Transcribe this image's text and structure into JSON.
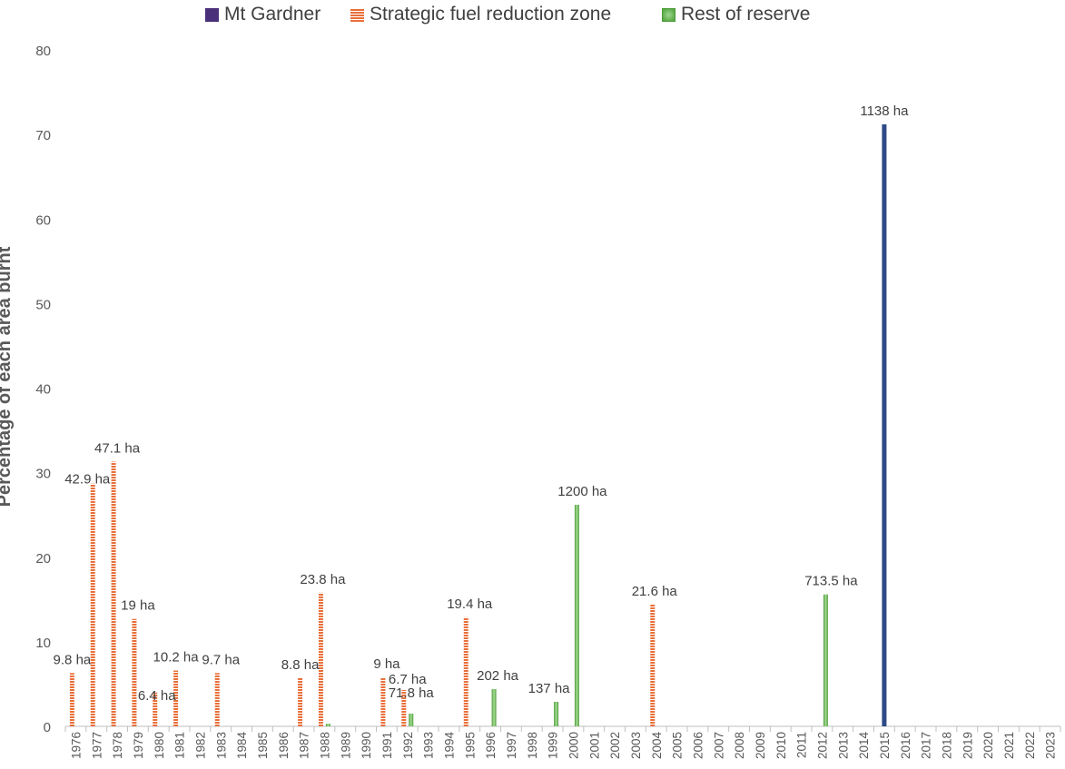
{
  "legend": [
    {
      "name": "Mt Gardner",
      "color": "#4a2f7a",
      "pattern": "solid"
    },
    {
      "name": "Strategic fuel reduction zone",
      "color": "#e8703a",
      "pattern": "stripes"
    },
    {
      "name": "Rest of reserve",
      "color": "#5aaa46",
      "pattern": "gradient"
    }
  ],
  "chart_data": {
    "type": "bar",
    "xlabel": "",
    "ylabel": "Percentage of each area burnt",
    "ylim": [
      0,
      80
    ],
    "yticks": [
      0,
      10,
      20,
      30,
      40,
      50,
      60,
      70,
      80
    ],
    "grid": false,
    "legend_position": "top",
    "categories": [
      "1976",
      "1977",
      "1978",
      "1979",
      "1980",
      "1981",
      "1982",
      "1983",
      "1984",
      "1985",
      "1986",
      "1987",
      "1988",
      "1989",
      "1990",
      "1991",
      "1992",
      "1993",
      "1994",
      "1995",
      "1996",
      "1997",
      "1998",
      "1999",
      "2000",
      "2001",
      "2002",
      "2003",
      "2004",
      "2005",
      "2006",
      "2007",
      "2008",
      "2009",
      "2010",
      "2011",
      "2012",
      "2013",
      "2014",
      "2015",
      "2016",
      "2017",
      "2018",
      "2019",
      "2020",
      "2021",
      "2022",
      "2023"
    ],
    "series": [
      {
        "name": "Strategic fuel reduction zone",
        "color": "#e8703a",
        "points": [
          {
            "x": "1976",
            "y": 6.3,
            "label": "9.8 ha"
          },
          {
            "x": "1977",
            "y": 28.7,
            "label": "42.9 ha"
          },
          {
            "x": "1978",
            "y": 31.3,
            "label": "47.1 ha"
          },
          {
            "x": "1979",
            "y": 12.7,
            "label": "19 ha"
          },
          {
            "x": "1980",
            "y": 4.0,
            "label": "6.4 ha"
          },
          {
            "x": "1981",
            "y": 6.6,
            "label": "10.2 ha"
          },
          {
            "x": "1983",
            "y": 6.3,
            "label": "9.7 ha"
          },
          {
            "x": "1987",
            "y": 5.7,
            "label": "8.8 ha"
          },
          {
            "x": "1988",
            "y": 15.8,
            "label": "23.8 ha"
          },
          {
            "x": "1991",
            "y": 5.8,
            "label": "9 ha"
          },
          {
            "x": "1992",
            "y": 4.3,
            "label": "6.7 ha"
          },
          {
            "x": "1995",
            "y": 12.9,
            "label": "19.4 ha"
          },
          {
            "x": "2004",
            "y": 14.4,
            "label": "21.6 ha"
          }
        ]
      },
      {
        "name": "Rest of reserve",
        "color": "#5aaa46",
        "points": [
          {
            "x": "1988",
            "y": 0.3,
            "label": ""
          },
          {
            "x": "1992",
            "y": 1.5,
            "label": "71.8 ha"
          },
          {
            "x": "1996",
            "y": 4.4,
            "label": "202 ha"
          },
          {
            "x": "1999",
            "y": 2.9,
            "label": "137 ha"
          },
          {
            "x": "2000",
            "y": 26.2,
            "label": "1200 ha"
          },
          {
            "x": "2012",
            "y": 15.6,
            "label": "713.5 ha"
          }
        ]
      },
      {
        "name": "Mt Gardner",
        "color": "#2e4a86",
        "points": [
          {
            "x": "2015",
            "y": 71.2,
            "label": "1138 ha"
          }
        ]
      }
    ]
  }
}
